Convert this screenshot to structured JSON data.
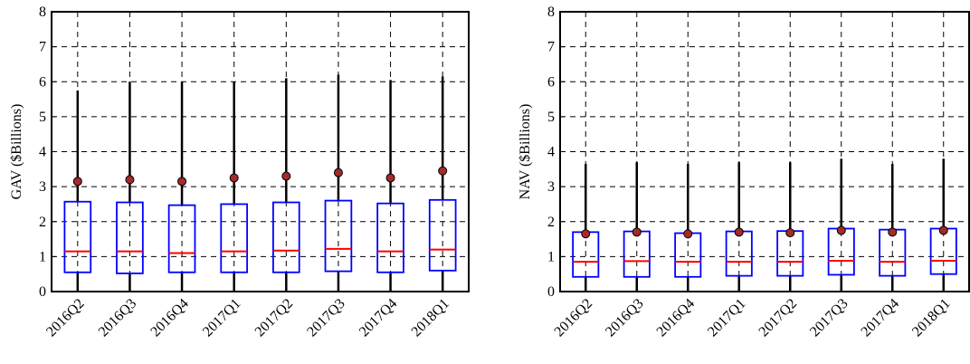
{
  "chart_data": [
    {
      "type": "box",
      "y_label": "GAV ($Billions)",
      "categories": [
        "2016Q2",
        "2016Q3",
        "2016Q4",
        "2017Q1",
        "2017Q2",
        "2017Q3",
        "2017Q4",
        "2018Q1"
      ],
      "low": [
        0,
        0,
        0,
        0,
        0,
        0,
        0,
        0
      ],
      "q1": [
        0.55,
        0.52,
        0.55,
        0.55,
        0.55,
        0.58,
        0.55,
        0.6
      ],
      "median": [
        1.15,
        1.15,
        1.1,
        1.15,
        1.17,
        1.22,
        1.15,
        1.2
      ],
      "q3": [
        2.57,
        2.55,
        2.47,
        2.5,
        2.55,
        2.6,
        2.52,
        2.62
      ],
      "high": [
        5.75,
        6.0,
        6.0,
        6.0,
        6.1,
        6.2,
        6.05,
        6.15
      ],
      "mean": [
        3.15,
        3.2,
        3.15,
        3.25,
        3.3,
        3.4,
        3.25,
        3.45
      ],
      "box_color": "#0000ff",
      "median_color": "#ff0000",
      "whisker_color": "#000000",
      "mean_color": "#a52a2a",
      "ylim": [
        0,
        8
      ],
      "yticks": [
        0,
        1,
        2,
        3,
        4,
        5,
        6,
        7,
        8
      ],
      "grid": true
    },
    {
      "type": "box",
      "y_label": "NAV ($Billions)",
      "categories": [
        "2016Q2",
        "2016Q3",
        "2016Q4",
        "2017Q1",
        "2017Q2",
        "2017Q3",
        "2017Q4",
        "2018Q1"
      ],
      "low": [
        0,
        0,
        0,
        0,
        0,
        0,
        0,
        0
      ],
      "q1": [
        0.42,
        0.42,
        0.42,
        0.45,
        0.45,
        0.48,
        0.45,
        0.5
      ],
      "median": [
        0.85,
        0.87,
        0.85,
        0.85,
        0.85,
        0.88,
        0.85,
        0.88
      ],
      "q3": [
        1.7,
        1.72,
        1.67,
        1.72,
        1.73,
        1.8,
        1.77,
        1.8
      ],
      "high": [
        3.65,
        3.7,
        3.65,
        3.7,
        3.7,
        3.8,
        3.65,
        3.8
      ],
      "mean": [
        1.65,
        1.7,
        1.65,
        1.7,
        1.68,
        1.75,
        1.7,
        1.75
      ],
      "box_color": "#0000ff",
      "median_color": "#ff0000",
      "whisker_color": "#000000",
      "mean_color": "#a52a2a",
      "ylim": [
        0,
        8
      ],
      "yticks": [
        0,
        1,
        2,
        3,
        4,
        5,
        6,
        7,
        8
      ],
      "grid": true
    }
  ]
}
